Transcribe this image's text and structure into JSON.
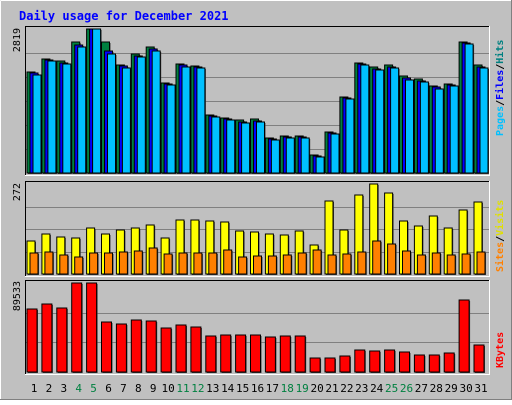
{
  "chart_data": [
    {
      "type": "bar",
      "panel": "hits-files-pages",
      "title": "Daily usage for December 2021",
      "categories": [
        "1",
        "2",
        "3",
        "4",
        "5",
        "6",
        "7",
        "8",
        "9",
        "10",
        "11",
        "12",
        "13",
        "14",
        "15",
        "16",
        "17",
        "18",
        "19",
        "20",
        "21",
        "22",
        "23",
        "24",
        "25",
        "26",
        "27",
        "28",
        "29",
        "30",
        "31"
      ],
      "weekend_categories": [
        "4",
        "5",
        "11",
        "12",
        "18",
        "19",
        "25",
        "26"
      ],
      "ymax_label": "2819",
      "ylim": [
        0,
        2819
      ],
      "grid": true,
      "series": [
        {
          "name": "Hits",
          "color": "#008040",
          "values": [
            1970,
            2240,
            2190,
            2560,
            2819,
            2560,
            2110,
            2330,
            2460,
            1770,
            2140,
            2100,
            1140,
            1080,
            1030,
            1050,
            680,
            720,
            720,
            360,
            810,
            1480,
            2160,
            2070,
            2110,
            1890,
            1840,
            1700,
            1750,
            2570,
            2120
          ]
        },
        {
          "name": "Files",
          "color": "#0000ff",
          "values": [
            1950,
            2220,
            2160,
            2510,
            2819,
            2380,
            2090,
            2300,
            2420,
            1750,
            2110,
            2080,
            1120,
            1060,
            1000,
            1020,
            660,
            700,
            700,
            340,
            790,
            1460,
            2140,
            2040,
            2080,
            1860,
            1810,
            1680,
            1730,
            2550,
            2080
          ]
        },
        {
          "name": "Pages",
          "color": "#00c0ff",
          "values": [
            1920,
            2200,
            2140,
            2460,
            2819,
            2330,
            2060,
            2270,
            2390,
            1720,
            2080,
            2060,
            1100,
            1040,
            970,
            1000,
            640,
            680,
            680,
            320,
            760,
            1440,
            2110,
            2010,
            2050,
            1830,
            1780,
            1650,
            1710,
            2530,
            2050
          ]
        }
      ],
      "legend": [
        "Pages",
        "/",
        "Files",
        "/",
        "Hits"
      ]
    },
    {
      "type": "bar",
      "panel": "visits-sites",
      "categories": [
        "1",
        "2",
        "3",
        "4",
        "5",
        "6",
        "7",
        "8",
        "9",
        "10",
        "11",
        "12",
        "13",
        "14",
        "15",
        "16",
        "17",
        "18",
        "19",
        "20",
        "21",
        "22",
        "23",
        "24",
        "25",
        "26",
        "27",
        "28",
        "29",
        "30",
        "31"
      ],
      "ymax_label": "272",
      "ylim": [
        0,
        272
      ],
      "grid": true,
      "series": [
        {
          "name": "Visits",
          "color": "#ffff00",
          "values": [
            100,
            122,
            112,
            110,
            140,
            122,
            134,
            138,
            148,
            108,
            162,
            162,
            160,
            156,
            130,
            128,
            122,
            118,
            130,
            88,
            222,
            134,
            238,
            272,
            244,
            160,
            144,
            176,
            138,
            192,
            218
          ]
        },
        {
          "name": "Sites",
          "color": "#ff8000",
          "values": [
            64,
            66,
            56,
            52,
            62,
            62,
            66,
            70,
            80,
            60,
            62,
            64,
            64,
            72,
            50,
            54,
            54,
            58,
            62,
            72,
            56,
            60,
            66,
            100,
            90,
            68,
            58,
            62,
            56,
            60,
            66
          ]
        }
      ],
      "legend": [
        "Sites",
        "/",
        "Visits"
      ]
    },
    {
      "type": "bar",
      "panel": "kbytes",
      "categories": [
        "1",
        "2",
        "3",
        "4",
        "5",
        "6",
        "7",
        "8",
        "9",
        "10",
        "11",
        "12",
        "13",
        "14",
        "15",
        "16",
        "17",
        "18",
        "19",
        "20",
        "21",
        "22",
        "23",
        "24",
        "25",
        "26",
        "27",
        "28",
        "29",
        "30",
        "31"
      ],
      "ymax_label": "89533",
      "ylim": [
        0,
        89533
      ],
      "grid": true,
      "series": [
        {
          "name": "KBytes",
          "color": "#ff0000",
          "values": [
            63000,
            68000,
            64000,
            89533,
            89533,
            50000,
            48000,
            52000,
            51000,
            44000,
            47000,
            45000,
            36000,
            37000,
            37000,
            37000,
            35000,
            36000,
            36000,
            14000,
            14000,
            16000,
            22000,
            21000,
            22000,
            20000,
            17000,
            17000,
            19000,
            72000,
            27000
          ]
        }
      ],
      "legend": [
        "KBytes"
      ]
    }
  ]
}
